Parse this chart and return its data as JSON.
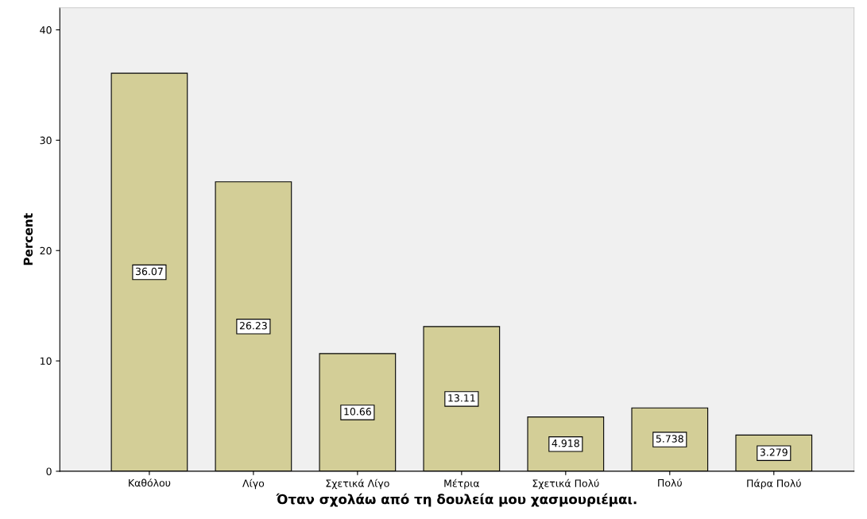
{
  "chart_data": {
    "type": "bar",
    "xlabel": "Όταν σχολάω από τη δουλεία μου χασμουριέμαι.",
    "ylabel": "Percent",
    "categories": [
      "Καθόλου",
      "Λίγο",
      "Σχετικά Λίγο",
      "Μέτρια",
      "Σχετικά Πολύ",
      "Πολύ",
      "Πάρα Πολύ"
    ],
    "values": [
      36.07,
      26.23,
      10.66,
      13.11,
      4.918,
      5.738,
      3.279
    ],
    "color": "#d3ce97",
    "ylim": [
      0,
      42
    ],
    "yticks": [
      0,
      10,
      20,
      30,
      40
    ],
    "grid": false,
    "data_labels": true
  }
}
